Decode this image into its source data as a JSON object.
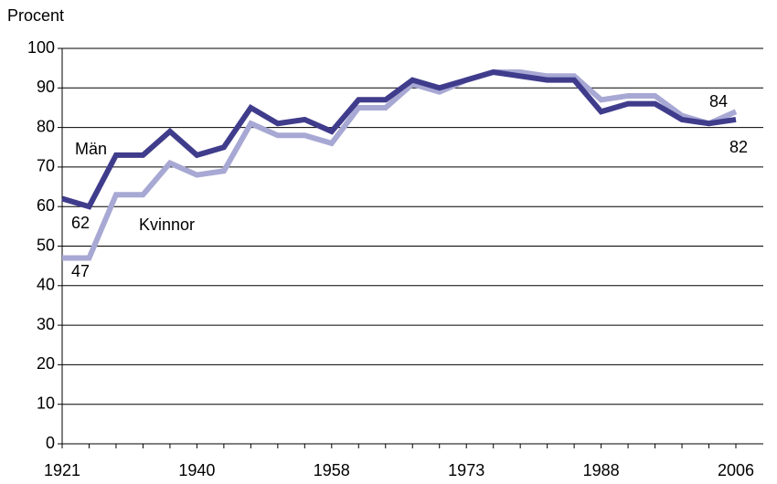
{
  "chart_data": {
    "type": "line",
    "y_label": "Procent",
    "categories": [
      "1921",
      null,
      null,
      null,
      null,
      "1940",
      null,
      null,
      null,
      null,
      "1958",
      null,
      null,
      null,
      null,
      "1973",
      null,
      null,
      null,
      null,
      "1988",
      null,
      null,
      null,
      null,
      "2006"
    ],
    "series": [
      {
        "name": "Män",
        "color": "#403c8c",
        "values": [
          62,
          60,
          73,
          73,
          79,
          73,
          75,
          85,
          81,
          82,
          79,
          87,
          87,
          92,
          90,
          92,
          94,
          93,
          92,
          92,
          84,
          86,
          86,
          82,
          81,
          82
        ]
      },
      {
        "name": "Kvinnor",
        "color": "#a8a8d4",
        "values": [
          47,
          47,
          63,
          63,
          71,
          68,
          69,
          81,
          78,
          78,
          76,
          85,
          85,
          91,
          89,
          92,
          94,
          94,
          93,
          93,
          87,
          88,
          88,
          83,
          81,
          84
        ]
      }
    ],
    "ylim": [
      0,
      100
    ],
    "yticks": [
      0,
      10,
      20,
      30,
      40,
      50,
      60,
      70,
      80,
      90,
      100
    ],
    "grid": true
  }
}
